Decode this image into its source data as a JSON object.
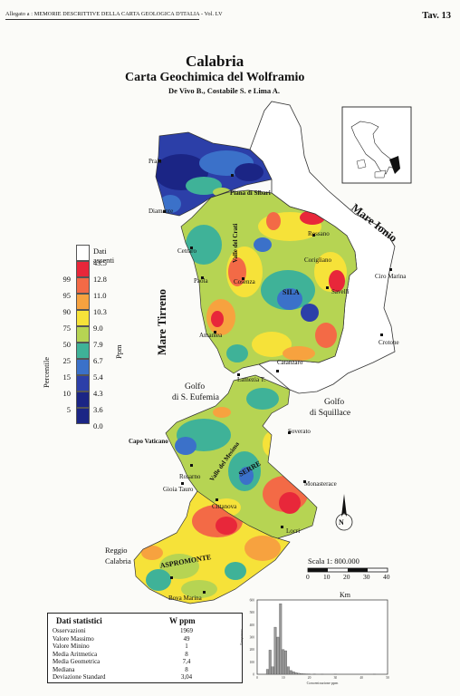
{
  "header": {
    "left": "Allegato a : MEMORIE DESCRITTIVE DELLA CARTA GEOLOGICA D'ITALIA - Vol. LV",
    "right": "Tav. 13"
  },
  "title": {
    "region": "Calabria",
    "subtitle": "Carta Geochimica del Wolframio",
    "authors": "De Vivo B., Costabile S. e Lima A."
  },
  "seas": {
    "tirreno": "Mare Tirreno",
    "ionio": "Mare Ionio"
  },
  "places": [
    {
      "name": "Praia"
    },
    {
      "name": "Diamante"
    },
    {
      "name": "Piana di Sibari"
    },
    {
      "name": "Rossano"
    },
    {
      "name": "Cetraro"
    },
    {
      "name": "Valle del Crati"
    },
    {
      "name": "Corigliano"
    },
    {
      "name": "Paola"
    },
    {
      "name": "Cosenza"
    },
    {
      "name": "SILA"
    },
    {
      "name": "Savelli"
    },
    {
      "name": "Ciro Marina"
    },
    {
      "name": "Amantea"
    },
    {
      "name": "Crotone"
    },
    {
      "name": "Catanzaro"
    },
    {
      "name": "Lamezia T."
    },
    {
      "name": "Golfo"
    },
    {
      "name": "di S. Eufemia"
    },
    {
      "name": "Golfo"
    },
    {
      "name": "di Squillace"
    },
    {
      "name": "Capo Vaticano"
    },
    {
      "name": "Soverato"
    },
    {
      "name": "Rosarno"
    },
    {
      "name": "Valle del Mesima"
    },
    {
      "name": "SERRE"
    },
    {
      "name": "Gioia Tauro"
    },
    {
      "name": "Monasterace"
    },
    {
      "name": "Cittanova"
    },
    {
      "name": "Locri"
    },
    {
      "name": "Reggio"
    },
    {
      "name": "Calabria"
    },
    {
      "name": "ASPROMONTE"
    },
    {
      "name": "Bova Marina"
    }
  ],
  "legend": {
    "absent_label": "Dati assenti",
    "percentile_label": "Percentile",
    "unit_label": "Ppm",
    "classes": [
      {
        "pct": "",
        "ppm": "43.5",
        "color": "#f4f4f4"
      },
      {
        "pct": "99",
        "ppm": "12.8",
        "color": "#e8273a"
      },
      {
        "pct": "95",
        "ppm": "11.0",
        "color": "#f36a46"
      },
      {
        "pct": "90",
        "ppm": "10.3",
        "color": "#f7a23f"
      },
      {
        "pct": "75",
        "ppm": "9.0",
        "color": "#f6e239"
      },
      {
        "pct": "50",
        "ppm": "7.9",
        "color": "#b6d453"
      },
      {
        "pct": "25",
        "ppm": "6.7",
        "color": "#3fb298"
      },
      {
        "pct": "15",
        "ppm": "5.4",
        "color": "#3b71c9"
      },
      {
        "pct": "10",
        "ppm": "4.3",
        "color": "#2c3fa8"
      },
      {
        "pct": "5",
        "ppm": "3.6",
        "color": "#1b2585"
      },
      {
        "pct": "",
        "ppm": "0.0",
        "color": ""
      }
    ]
  },
  "scale": {
    "label": "Scala 1: 800.000",
    "ticks": [
      "0",
      "10",
      "20",
      "30",
      "40"
    ],
    "unit": "Km"
  },
  "north": "N",
  "stats": {
    "title": "Dati statistici",
    "column": "W ppm",
    "rows": [
      {
        "k": "Osservazioni",
        "v": "1969"
      },
      {
        "k": "Valore Massimo",
        "v": "49"
      },
      {
        "k": "Valore Minino",
        "v": "1"
      },
      {
        "k": "Media Aritmetica",
        "v": "8"
      },
      {
        "k": "Media Geometrica",
        "v": "7,4"
      },
      {
        "k": "Mediana",
        "v": "8"
      },
      {
        "k": "Deviazione Standard",
        "v": "3,04"
      }
    ]
  },
  "histogram": {
    "ylabel": "Frequenza",
    "xlabel": "Concentrazione ppm",
    "y_ticks": [
      "0",
      "100",
      "200",
      "300",
      "400",
      "500",
      "600"
    ],
    "x_ticks": [
      "0",
      "10",
      "20",
      "30",
      "40",
      "50"
    ],
    "bins": [
      {
        "x": 4,
        "f": 40
      },
      {
        "x": 5,
        "f": 195
      },
      {
        "x": 6,
        "f": 60
      },
      {
        "x": 7,
        "f": 380
      },
      {
        "x": 8,
        "f": 300
      },
      {
        "x": 9,
        "f": 570
      },
      {
        "x": 10,
        "f": 200
      },
      {
        "x": 11,
        "f": 190
      },
      {
        "x": 12,
        "f": 60
      },
      {
        "x": 13,
        "f": 30
      },
      {
        "x": 14,
        "f": 20
      },
      {
        "x": 15,
        "f": 12
      },
      {
        "x": 16,
        "f": 8
      },
      {
        "x": 17,
        "f": 6
      },
      {
        "x": 18,
        "f": 4
      },
      {
        "x": 19,
        "f": 3
      },
      {
        "x": 20,
        "f": 2
      },
      {
        "x": 22,
        "f": 2
      },
      {
        "x": 25,
        "f": 1
      },
      {
        "x": 30,
        "f": 1
      },
      {
        "x": 45,
        "f": 1
      }
    ]
  }
}
